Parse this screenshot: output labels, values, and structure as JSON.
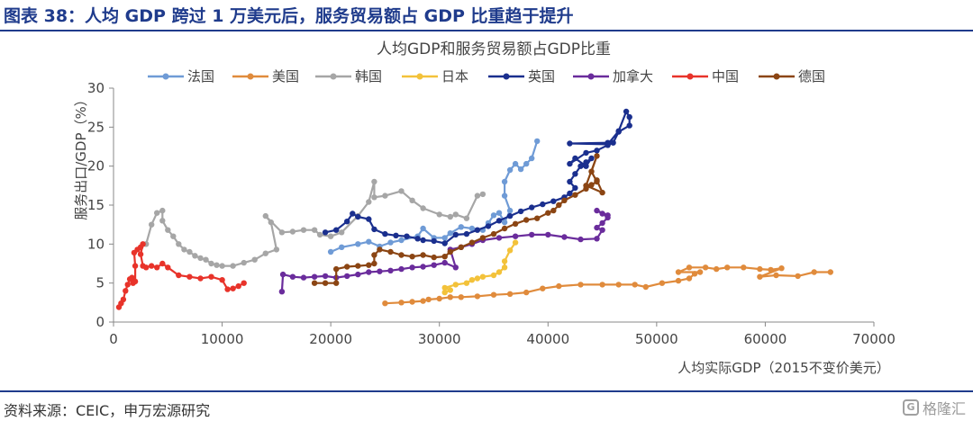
{
  "header": {
    "title": "图表 38：人均 GDP 跨过 1 万美元后，服务贸易额占 GDP 比重趋于提升"
  },
  "footer": {
    "source": "资料来源：CEIC，申万宏源研究",
    "watermark": "格隆汇",
    "watermark_icon": "G"
  },
  "colors": {
    "brand": "#1f3b8c"
  },
  "chart_data": {
    "type": "line",
    "title": "人均GDP和服务贸易额占GDP比重",
    "xlabel": "人均实际GDP（2015不变价美元）",
    "ylabel": "服务出口/GDP（%）",
    "xlim": [
      0,
      70000
    ],
    "ylim": [
      0,
      30
    ],
    "xticks": [
      0,
      10000,
      20000,
      30000,
      40000,
      50000,
      60000,
      70000
    ],
    "yticks": [
      0,
      5,
      10,
      15,
      20,
      25,
      30
    ],
    "grid": false,
    "legend_position": "top",
    "series": [
      {
        "name": "法国",
        "color": "#6f9bd6",
        "points": [
          [
            20000,
            9.0
          ],
          [
            21000,
            9.6
          ],
          [
            22500,
            10.0
          ],
          [
            23500,
            10.3
          ],
          [
            24500,
            9.7
          ],
          [
            25500,
            10.2
          ],
          [
            26500,
            10.5
          ],
          [
            28000,
            11.0
          ],
          [
            28500,
            12.0
          ],
          [
            29500,
            10.8
          ],
          [
            30500,
            10.8
          ],
          [
            31000,
            11.4
          ],
          [
            32000,
            12.2
          ],
          [
            33000,
            12.0
          ],
          [
            34000,
            11.8
          ],
          [
            34500,
            12.7
          ],
          [
            35000,
            13.7
          ],
          [
            35500,
            14.0
          ],
          [
            36000,
            12.8
          ],
          [
            36500,
            14.3
          ],
          [
            36000,
            16.2
          ],
          [
            36000,
            18.0
          ],
          [
            36500,
            19.5
          ],
          [
            37000,
            20.3
          ],
          [
            37500,
            19.6
          ],
          [
            38000,
            20.3
          ],
          [
            38500,
            21.0
          ],
          [
            39000,
            23.2
          ]
        ]
      },
      {
        "name": "美国",
        "color": "#e08b3c",
        "points": [
          [
            25000,
            2.4
          ],
          [
            26500,
            2.5
          ],
          [
            27500,
            2.6
          ],
          [
            28500,
            2.7
          ],
          [
            29000,
            2.9
          ],
          [
            30000,
            3.0
          ],
          [
            31000,
            3.2
          ],
          [
            32000,
            3.2
          ],
          [
            33500,
            3.3
          ],
          [
            35000,
            3.5
          ],
          [
            36500,
            3.6
          ],
          [
            38000,
            3.8
          ],
          [
            39500,
            4.3
          ],
          [
            41000,
            4.6
          ],
          [
            43000,
            4.8
          ],
          [
            45000,
            4.8
          ],
          [
            46500,
            4.8
          ],
          [
            48000,
            4.8
          ],
          [
            49000,
            4.5
          ],
          [
            50500,
            5.0
          ],
          [
            52000,
            5.3
          ],
          [
            53000,
            5.6
          ],
          [
            53500,
            6.2
          ],
          [
            54000,
            6.4
          ],
          [
            52000,
            6.4
          ],
          [
            53000,
            7.0
          ],
          [
            54500,
            7.0
          ],
          [
            55500,
            6.8
          ],
          [
            56500,
            7.0
          ],
          [
            58000,
            7.0
          ],
          [
            59500,
            6.8
          ],
          [
            60500,
            6.7
          ],
          [
            61500,
            6.9
          ],
          [
            59500,
            5.8
          ],
          [
            61000,
            6.0
          ],
          [
            63000,
            5.9
          ],
          [
            64500,
            6.4
          ],
          [
            66000,
            6.4
          ]
        ]
      },
      {
        "name": "韩国",
        "color": "#a6a6a6",
        "points": [
          [
            3000,
            10.0
          ],
          [
            3500,
            12.5
          ],
          [
            4000,
            14.0
          ],
          [
            4500,
            14.3
          ],
          [
            4500,
            13.0
          ],
          [
            5000,
            11.8
          ],
          [
            5500,
            11.0
          ],
          [
            6000,
            10.0
          ],
          [
            6500,
            9.3
          ],
          [
            7000,
            9.0
          ],
          [
            7500,
            8.5
          ],
          [
            8000,
            8.2
          ],
          [
            8500,
            8.0
          ],
          [
            9000,
            7.5
          ],
          [
            9500,
            7.3
          ],
          [
            10000,
            7.2
          ],
          [
            11000,
            7.2
          ],
          [
            12000,
            7.6
          ],
          [
            13000,
            8.0
          ],
          [
            14000,
            8.8
          ],
          [
            15000,
            9.3
          ],
          [
            14500,
            12.8
          ],
          [
            14000,
            13.6
          ],
          [
            15500,
            11.5
          ],
          [
            16500,
            11.6
          ],
          [
            17500,
            11.8
          ],
          [
            18500,
            11.8
          ],
          [
            19000,
            11.2
          ],
          [
            20000,
            11.0
          ],
          [
            21000,
            11.5
          ],
          [
            22500,
            13.6
          ],
          [
            23500,
            15.4
          ],
          [
            24000,
            18.0
          ],
          [
            24000,
            16.0
          ],
          [
            25000,
            16.2
          ],
          [
            26500,
            16.8
          ],
          [
            27500,
            15.6
          ],
          [
            28500,
            14.6
          ],
          [
            30000,
            13.8
          ],
          [
            31000,
            13.5
          ],
          [
            31500,
            13.8
          ],
          [
            32500,
            13.3
          ],
          [
            33500,
            16.2
          ],
          [
            34000,
            16.4
          ]
        ]
      },
      {
        "name": "日本",
        "color": "#f3c23a",
        "points": [
          [
            30500,
            3.8
          ],
          [
            31000,
            4.1
          ],
          [
            30500,
            4.4
          ],
          [
            31500,
            4.8
          ],
          [
            32500,
            5.0
          ],
          [
            33000,
            5.4
          ],
          [
            33500,
            5.6
          ],
          [
            34000,
            5.8
          ],
          [
            35000,
            6.0
          ],
          [
            35500,
            6.4
          ],
          [
            36000,
            7.0
          ],
          [
            36000,
            7.8
          ],
          [
            36500,
            9.2
          ],
          [
            37000,
            10.2
          ]
        ]
      },
      {
        "name": "英国",
        "color": "#1a2f8e",
        "points": [
          [
            19500,
            11.5
          ],
          [
            20500,
            11.8
          ],
          [
            21500,
            12.9
          ],
          [
            22000,
            13.9
          ],
          [
            22500,
            13.5
          ],
          [
            23500,
            13.2
          ],
          [
            24000,
            11.9
          ],
          [
            25000,
            11.3
          ],
          [
            26000,
            11.1
          ],
          [
            27000,
            11.0
          ],
          [
            28000,
            10.7
          ],
          [
            28500,
            10.5
          ],
          [
            29500,
            10.4
          ],
          [
            30500,
            10.1
          ],
          [
            31500,
            11.2
          ],
          [
            32500,
            11.3
          ],
          [
            33500,
            11.8
          ],
          [
            34500,
            12.3
          ],
          [
            35500,
            13.0
          ],
          [
            36500,
            13.6
          ],
          [
            37500,
            14.2
          ],
          [
            38500,
            14.7
          ],
          [
            39500,
            15.1
          ],
          [
            40500,
            15.5
          ],
          [
            41500,
            16.0
          ],
          [
            42000,
            16.5
          ],
          [
            42500,
            17.2
          ],
          [
            42000,
            18.0
          ],
          [
            42500,
            19.0
          ],
          [
            43000,
            20.0
          ],
          [
            43500,
            20.5
          ],
          [
            44000,
            21.0
          ],
          [
            43500,
            20.0
          ],
          [
            42500,
            21.0
          ],
          [
            42000,
            20.3
          ],
          [
            43500,
            21.7
          ],
          [
            44500,
            22.0
          ],
          [
            45500,
            22.7
          ],
          [
            46000,
            23.0
          ],
          [
            46500,
            24.4
          ],
          [
            47500,
            25.2
          ],
          [
            47500,
            26.3
          ],
          [
            47200,
            27.0
          ],
          [
            46500,
            24.5
          ],
          [
            45500,
            22.8
          ],
          [
            42000,
            22.9
          ],
          [
            45500,
            23.0
          ]
        ]
      },
      {
        "name": "加拿大",
        "color": "#6a2c9c",
        "points": [
          [
            15500,
            3.9
          ],
          [
            15600,
            6.1
          ],
          [
            16500,
            5.8
          ],
          [
            17500,
            5.7
          ],
          [
            18500,
            5.8
          ],
          [
            19500,
            5.9
          ],
          [
            20500,
            5.7
          ],
          [
            21500,
            5.9
          ],
          [
            22500,
            6.1
          ],
          [
            23500,
            6.4
          ],
          [
            24500,
            6.5
          ],
          [
            25500,
            6.6
          ],
          [
            26500,
            6.8
          ],
          [
            27500,
            7.0
          ],
          [
            28500,
            7.1
          ],
          [
            29500,
            7.3
          ],
          [
            30500,
            7.6
          ],
          [
            31500,
            7.0
          ],
          [
            31000,
            9.3
          ],
          [
            32000,
            9.6
          ],
          [
            33000,
            10.0
          ],
          [
            34000,
            10.5
          ],
          [
            35500,
            10.8
          ],
          [
            37000,
            11.0
          ],
          [
            38500,
            11.2
          ],
          [
            40000,
            11.2
          ],
          [
            41500,
            10.9
          ],
          [
            43000,
            10.6
          ],
          [
            44500,
            10.7
          ],
          [
            45000,
            11.8
          ],
          [
            44500,
            12.1
          ],
          [
            45000,
            12.7
          ],
          [
            45500,
            13.4
          ],
          [
            45000,
            13.9
          ],
          [
            44500,
            14.3
          ],
          [
            45500,
            13.7
          ]
        ]
      },
      {
        "name": "中国",
        "color": "#e8332a",
        "points": [
          [
            500,
            1.9
          ],
          [
            700,
            2.4
          ],
          [
            900,
            2.9
          ],
          [
            1100,
            4.0
          ],
          [
            1300,
            4.8
          ],
          [
            1500,
            5.5
          ],
          [
            1700,
            5.7
          ],
          [
            1800,
            5.0
          ],
          [
            2000,
            5.2
          ],
          [
            2000,
            7.2
          ],
          [
            1900,
            8.9
          ],
          [
            2200,
            9.3
          ],
          [
            2500,
            9.6
          ],
          [
            2700,
            10.0
          ],
          [
            2500,
            8.7
          ],
          [
            2700,
            7.2
          ],
          [
            3000,
            7.0
          ],
          [
            3500,
            7.2
          ],
          [
            4000,
            7.0
          ],
          [
            4500,
            7.5
          ],
          [
            5000,
            7.0
          ],
          [
            6000,
            6.0
          ],
          [
            7000,
            5.8
          ],
          [
            8000,
            5.6
          ],
          [
            9000,
            5.8
          ],
          [
            10000,
            5.4
          ],
          [
            10500,
            4.2
          ],
          [
            11000,
            4.3
          ],
          [
            11500,
            4.6
          ],
          [
            12000,
            5.0
          ]
        ]
      },
      {
        "name": "德国",
        "color": "#8b4513",
        "points": [
          [
            18500,
            5.0
          ],
          [
            19500,
            5.0
          ],
          [
            20500,
            5.0
          ],
          [
            20500,
            6.8
          ],
          [
            21500,
            7.1
          ],
          [
            22500,
            7.2
          ],
          [
            23500,
            7.3
          ],
          [
            24000,
            7.5
          ],
          [
            24000,
            8.6
          ],
          [
            24500,
            9.3
          ],
          [
            25500,
            9.0
          ],
          [
            26500,
            8.6
          ],
          [
            27500,
            8.4
          ],
          [
            28500,
            8.6
          ],
          [
            29500,
            8.3
          ],
          [
            30500,
            8.4
          ],
          [
            31000,
            9.0
          ],
          [
            32000,
            9.6
          ],
          [
            33000,
            10.2
          ],
          [
            34000,
            10.8
          ],
          [
            35000,
            11.3
          ],
          [
            36000,
            12.0
          ],
          [
            37000,
            12.6
          ],
          [
            38000,
            13.1
          ],
          [
            39000,
            13.3
          ],
          [
            40000,
            14.0
          ],
          [
            40500,
            14.3
          ],
          [
            41000,
            15.0
          ],
          [
            41500,
            15.6
          ],
          [
            42500,
            16.3
          ],
          [
            43500,
            17.1
          ],
          [
            44000,
            17.6
          ],
          [
            44500,
            18.0
          ],
          [
            44000,
            19.3
          ],
          [
            44500,
            21.3
          ],
          [
            43500,
            17.5
          ],
          [
            45000,
            16.6
          ],
          [
            44500,
            18.2
          ]
        ]
      }
    ]
  }
}
